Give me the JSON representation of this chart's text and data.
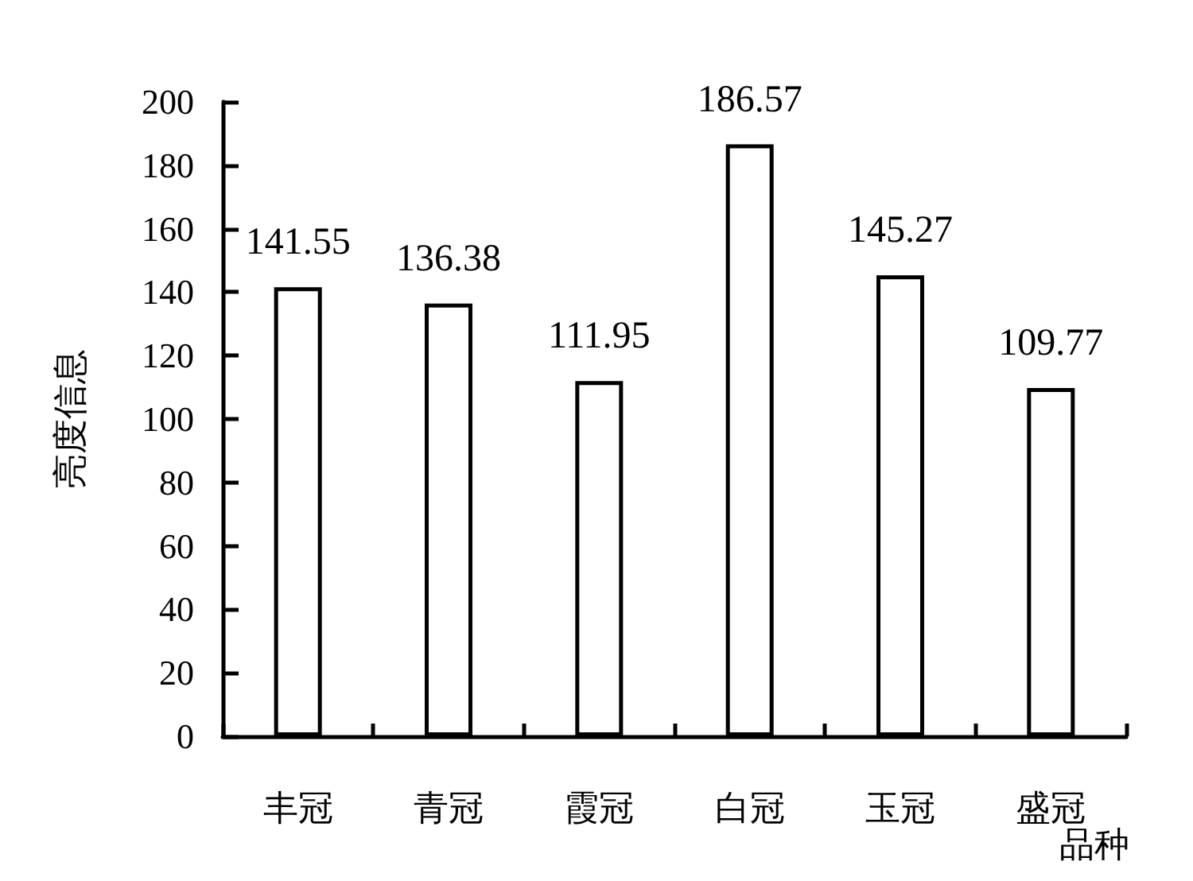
{
  "chart_data": {
    "type": "bar",
    "xlabel": "品种",
    "ylabel": "亮度信息",
    "categories": [
      "丰冠",
      "青冠",
      "霞冠",
      "白冠",
      "玉冠",
      "盛冠"
    ],
    "values": [
      141.55,
      136.38,
      111.95,
      186.57,
      145.27,
      109.77
    ],
    "color": "#ffffff",
    "ylim": [
      0,
      200
    ],
    "yticks": [
      0,
      20,
      40,
      60,
      80,
      100,
      120,
      140,
      160,
      180,
      200
    ],
    "grid": false,
    "data_labels": true
  }
}
